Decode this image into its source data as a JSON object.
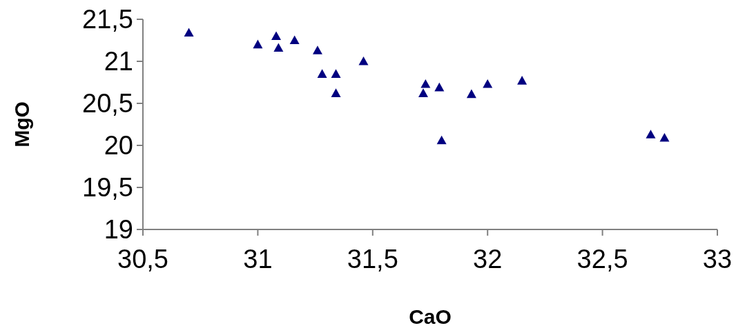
{
  "chart_data": {
    "type": "scatter",
    "xlabel": "CaO",
    "ylabel": "MgO",
    "marker": "triangle",
    "x": [
      30.7,
      31.0,
      31.08,
      31.09,
      31.16,
      31.26,
      31.28,
      31.34,
      31.34,
      31.46,
      31.72,
      31.73,
      31.79,
      31.8,
      31.93,
      32.0,
      32.15,
      32.71,
      32.77
    ],
    "series": [
      {
        "color": "#000080",
        "values": [
          21.34,
          21.2,
          21.3,
          21.16,
          21.25,
          21.13,
          20.85,
          20.85,
          20.62,
          21.0,
          20.62,
          20.73,
          20.69,
          20.06,
          20.61,
          20.73,
          20.77,
          20.13,
          20.09
        ]
      }
    ],
    "xlim": [
      30.5,
      33
    ],
    "xticks": [
      {
        "value": 30.5,
        "label": "30,5"
      },
      31,
      {
        "value": 31.5,
        "label": "31,5"
      },
      32,
      {
        "value": 32.5,
        "label": "32,5"
      },
      33
    ],
    "ylim": [
      19,
      21.5
    ],
    "yticks": [
      19,
      {
        "value": 19.5,
        "label": "19,5"
      },
      20,
      {
        "value": 20.5,
        "label": "20,5"
      },
      21,
      {
        "value": 21.5,
        "label": "21,5"
      }
    ],
    "grid": false
  }
}
